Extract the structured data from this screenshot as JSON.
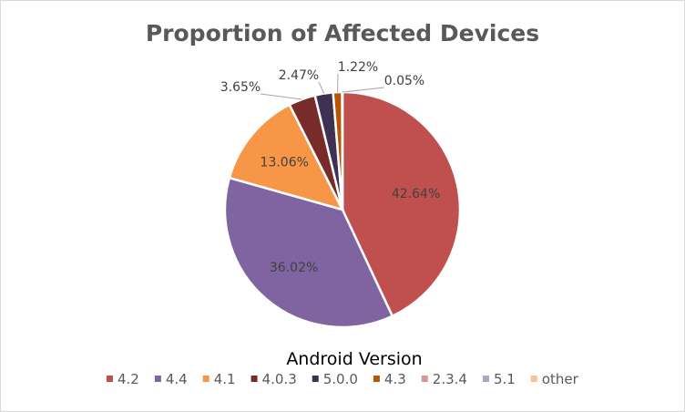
{
  "chart_data": {
    "type": "pie",
    "title": "Proportion of Affected Devices",
    "legend_title": "Android Version",
    "legend_position": "bottom",
    "slices": [
      {
        "label": "4.2",
        "value": 42.64,
        "display": "42.64%",
        "color": "#c0504d"
      },
      {
        "label": "4.4",
        "value": 36.02,
        "display": "36.02%",
        "color": "#8064a2"
      },
      {
        "label": "4.1",
        "value": 13.06,
        "display": "13.06%",
        "color": "#f79646"
      },
      {
        "label": "4.0.3",
        "value": 3.65,
        "display": "3.65%",
        "color": "#772c2a"
      },
      {
        "label": "5.0.0",
        "value": 2.47,
        "display": "2.47%",
        "color": "#3f3151"
      },
      {
        "label": "4.3",
        "value": 1.22,
        "display": "1.22%",
        "color": "#b65708"
      },
      {
        "label": "2.3.4",
        "value": 0.05,
        "display": "0.05%",
        "color": "#d99694"
      },
      {
        "label": "5.1",
        "value": 0.0,
        "display": "",
        "color": "#b3a2c7"
      },
      {
        "label": "other",
        "value": 0.0,
        "display": "",
        "color": "#fac090"
      }
    ]
  }
}
